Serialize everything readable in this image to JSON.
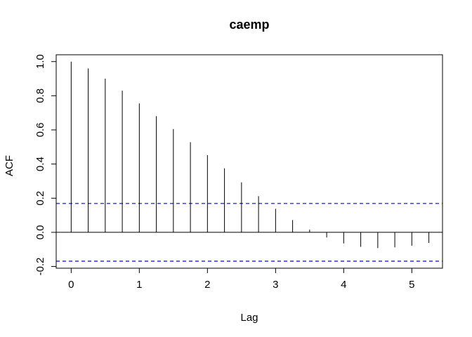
{
  "chart_data": {
    "type": "acf",
    "title": "caemp",
    "xlabel": "Lag",
    "ylabel": "ACF",
    "xlim": [
      -0.22,
      5.45
    ],
    "ylim": [
      -0.21,
      1.04
    ],
    "x_ticks": [
      0,
      1,
      2,
      3,
      4,
      5
    ],
    "x_tick_labels": [
      "0",
      "1",
      "2",
      "3",
      "4",
      "5"
    ],
    "y_ticks": [
      -0.2,
      0.0,
      0.2,
      0.4,
      0.6,
      0.8,
      1.0
    ],
    "y_tick_labels": [
      "-0.2",
      "0.0",
      "0.2",
      "0.4",
      "0.6",
      "0.8",
      "1.0"
    ],
    "lags": [
      0,
      0.25,
      0.5,
      0.75,
      1.0,
      1.25,
      1.5,
      1.75,
      2.0,
      2.25,
      2.5,
      2.75,
      3.0,
      3.25,
      3.5,
      3.75,
      4.0,
      4.25,
      4.5,
      4.75,
      5.0,
      5.25
    ],
    "acf": [
      1.0,
      0.96,
      0.9,
      0.83,
      0.755,
      0.68,
      0.605,
      0.528,
      0.452,
      0.375,
      0.293,
      0.212,
      0.138,
      0.072,
      0.016,
      -0.03,
      -0.065,
      -0.085,
      -0.092,
      -0.088,
      -0.078,
      -0.062
    ],
    "confidence_bound": 0.169,
    "zero_line": true,
    "grid": false,
    "colors": {
      "bars": "#000000",
      "confidence": "#0000ff",
      "axes": "#000000"
    }
  }
}
